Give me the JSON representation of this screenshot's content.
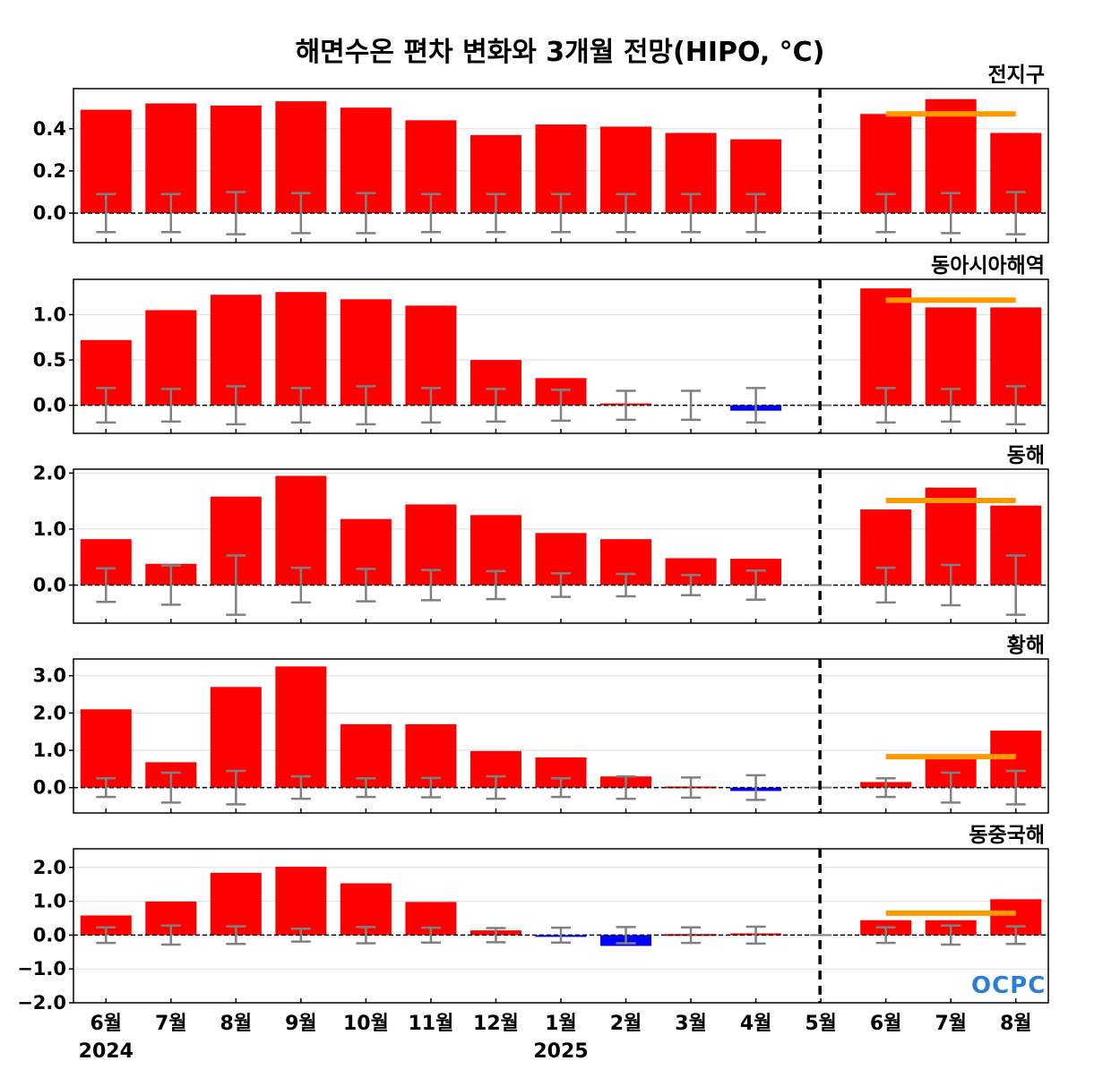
{
  "title": "해면수온 편차 변화와 3개월 전망(HIPO, °C)",
  "logo_text": "OCPC",
  "colors": {
    "positive": "#ff0000",
    "negative": "#0000ff",
    "forecast_mean": "#ff9900",
    "error_bar": "#808080"
  },
  "chart_data": [
    {
      "type": "bar",
      "title": "전지구",
      "categories": [
        "6월",
        "7월",
        "8월",
        "9월",
        "10월",
        "11월",
        "12월",
        "1월",
        "2월",
        "3월",
        "4월",
        "5월",
        "6월",
        "7월",
        "8월"
      ],
      "year_labels": [
        {
          "index": 0,
          "label": "2024"
        },
        {
          "index": 7,
          "label": "2025"
        }
      ],
      "values": [
        0.49,
        0.52,
        0.51,
        0.53,
        0.5,
        0.44,
        0.37,
        0.42,
        0.41,
        0.38,
        0.35,
        0.0,
        0.47,
        0.54,
        0.38
      ],
      "error": [
        0.09,
        0.09,
        0.1,
        0.095,
        0.095,
        0.09,
        0.09,
        0.09,
        0.09,
        0.09,
        0.09,
        0.0,
        0.09,
        0.095,
        0.1
      ],
      "forecast_mean": 0.47,
      "forecast_start_index": 12,
      "divider_after_index": 11,
      "ylim": [
        -0.14,
        0.59
      ],
      "yticks": [
        0.0,
        0.2,
        0.4
      ],
      "ytick_labels": [
        "0.0",
        "0.2",
        "0.4"
      ]
    },
    {
      "type": "bar",
      "title": "동아시아해역",
      "categories": [
        "6월",
        "7월",
        "8월",
        "9월",
        "10월",
        "11월",
        "12월",
        "1월",
        "2월",
        "3월",
        "4월",
        "5월",
        "6월",
        "7월",
        "8월"
      ],
      "values": [
        0.72,
        1.05,
        1.22,
        1.25,
        1.17,
        1.1,
        0.5,
        0.3,
        0.02,
        0.0,
        -0.06,
        0.0,
        1.29,
        1.08,
        1.08
      ],
      "error": [
        0.19,
        0.18,
        0.21,
        0.19,
        0.21,
        0.19,
        0.18,
        0.17,
        0.16,
        0.16,
        0.19,
        0.0,
        0.19,
        0.18,
        0.21
      ],
      "forecast_mean": 1.16,
      "forecast_start_index": 12,
      "divider_after_index": 11,
      "ylim": [
        -0.31,
        1.39
      ],
      "yticks": [
        0.0,
        0.5,
        1.0
      ],
      "ytick_labels": [
        "0.0",
        "0.5",
        "1.0"
      ]
    },
    {
      "type": "bar",
      "title": "동해",
      "categories": [
        "6월",
        "7월",
        "8월",
        "9월",
        "10월",
        "11월",
        "12월",
        "1월",
        "2월",
        "3월",
        "4월",
        "5월",
        "6월",
        "7월",
        "8월"
      ],
      "values": [
        0.82,
        0.38,
        1.58,
        1.95,
        1.18,
        1.44,
        1.25,
        0.93,
        0.82,
        0.48,
        0.47,
        0.0,
        1.35,
        1.74,
        1.42
      ],
      "error": [
        0.3,
        0.35,
        0.53,
        0.31,
        0.29,
        0.27,
        0.25,
        0.21,
        0.2,
        0.18,
        0.26,
        0.0,
        0.31,
        0.36,
        0.53
      ],
      "forecast_mean": 1.51,
      "forecast_start_index": 12,
      "divider_after_index": 11,
      "ylim": [
        -0.68,
        2.07
      ],
      "yticks": [
        0.0,
        1.0,
        2.0
      ],
      "ytick_labels": [
        "0.0",
        "1.0",
        "2.0"
      ]
    },
    {
      "type": "bar",
      "title": "황해",
      "categories": [
        "6월",
        "7월",
        "8월",
        "9월",
        "10월",
        "11월",
        "12월",
        "1월",
        "2월",
        "3월",
        "4월",
        "5월",
        "6월",
        "7월",
        "8월"
      ],
      "values": [
        2.1,
        0.68,
        2.7,
        3.25,
        1.7,
        1.7,
        0.98,
        0.81,
        0.3,
        0.03,
        -0.09,
        0.0,
        0.15,
        0.81,
        1.53
      ],
      "error": [
        0.25,
        0.4,
        0.45,
        0.3,
        0.25,
        0.26,
        0.3,
        0.25,
        0.3,
        0.27,
        0.33,
        0.0,
        0.25,
        0.4,
        0.45
      ],
      "forecast_mean": 0.83,
      "forecast_start_index": 12,
      "divider_after_index": 11,
      "ylim": [
        -0.68,
        3.45
      ],
      "yticks": [
        0.0,
        1.0,
        2.0,
        3.0
      ],
      "ytick_labels": [
        "0.0",
        "1.0",
        "2.0",
        "3.0"
      ]
    },
    {
      "type": "bar",
      "title": "동중국해",
      "categories": [
        "6월",
        "7월",
        "8월",
        "9월",
        "10월",
        "11월",
        "12월",
        "1월",
        "2월",
        "3월",
        "4월",
        "5월",
        "6월",
        "7월",
        "8월"
      ],
      "values": [
        0.58,
        0.99,
        1.84,
        2.02,
        1.53,
        0.98,
        0.14,
        -0.05,
        -0.32,
        0.03,
        0.05,
        0.0,
        0.44,
        0.44,
        1.06
      ],
      "error": [
        0.23,
        0.28,
        0.26,
        0.19,
        0.24,
        0.22,
        0.21,
        0.22,
        0.24,
        0.23,
        0.25,
        0.0,
        0.23,
        0.28,
        0.26
      ],
      "forecast_mean": 0.65,
      "forecast_start_index": 12,
      "divider_after_index": 11,
      "ylim": [
        -2.0,
        2.55
      ],
      "yticks": [
        -2.0,
        -1.0,
        0.0,
        1.0,
        2.0
      ],
      "ytick_labels": [
        "−2.0",
        "−1.0",
        "0.0",
        "1.0",
        "2.0"
      ]
    }
  ]
}
